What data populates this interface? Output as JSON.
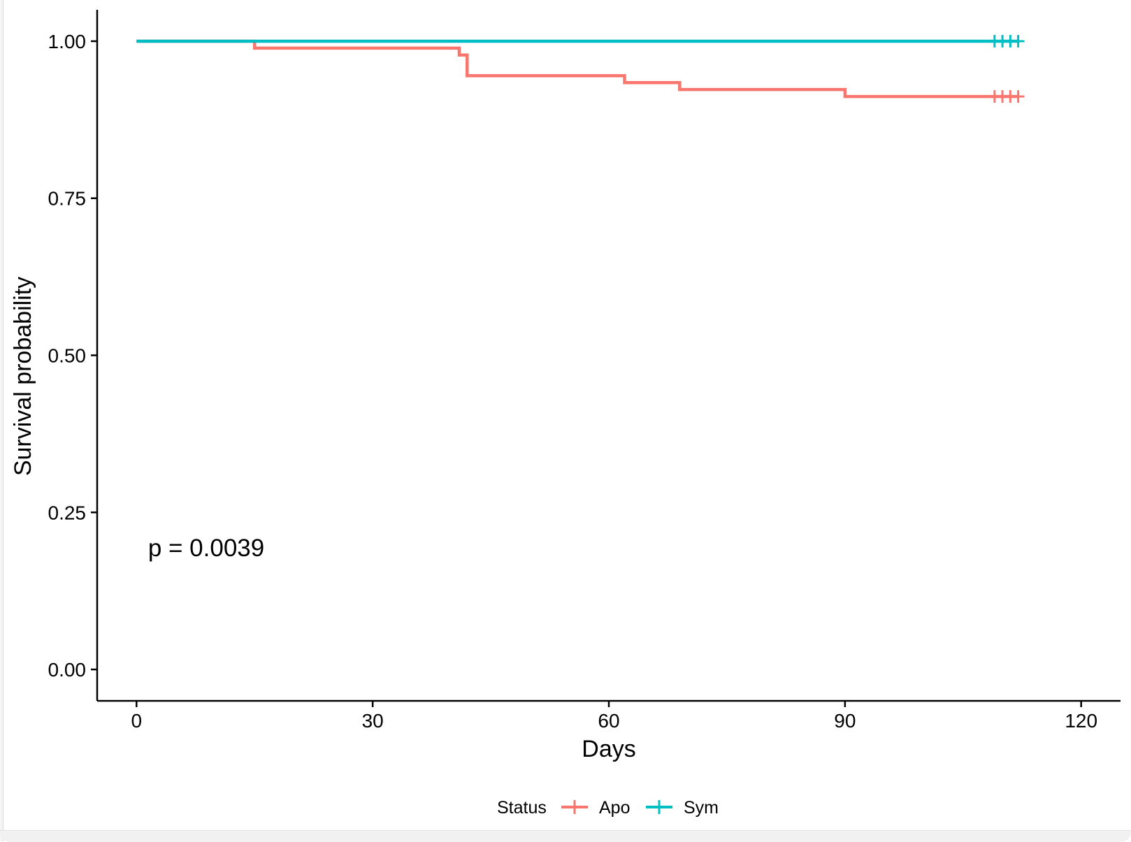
{
  "chart_data": {
    "type": "line",
    "subtype": "kaplan-meier step",
    "title": "",
    "xlabel": "Days",
    "ylabel": "Survival probability",
    "xlim": [
      -5,
      125
    ],
    "ylim": [
      -0.05,
      1.05
    ],
    "x_ticks": [
      0,
      30,
      60,
      90,
      120
    ],
    "x_tick_labels": [
      "0",
      "30",
      "60",
      "90",
      "120"
    ],
    "y_ticks": [
      0,
      0.25,
      0.5,
      0.75,
      1
    ],
    "y_tick_labels": [
      "0.00",
      "0.25",
      "0.50",
      "0.75",
      "1.00"
    ],
    "grid": false,
    "annotation": "p = 0.0039",
    "annotation_position": [
      2,
      0.2
    ],
    "legend": {
      "title": "Status",
      "position": "bottom",
      "entries": [
        "Apo",
        "Sym"
      ]
    },
    "series": [
      {
        "name": "Apo",
        "color": "#F8766D",
        "steps": [
          [
            0,
            1.0
          ],
          [
            15,
            0.989
          ],
          [
            41,
            0.978
          ],
          [
            42,
            0.945
          ],
          [
            62,
            0.934
          ],
          [
            69,
            0.923
          ],
          [
            90,
            0.912
          ],
          [
            112,
            0.912
          ]
        ],
        "censor_x": [
          109,
          110,
          111,
          112
        ]
      },
      {
        "name": "Sym",
        "color": "#00BFC4",
        "steps": [
          [
            0,
            1.0
          ],
          [
            112,
            1.0
          ]
        ],
        "censor_x": [
          109,
          110,
          111,
          112
        ]
      }
    ]
  }
}
